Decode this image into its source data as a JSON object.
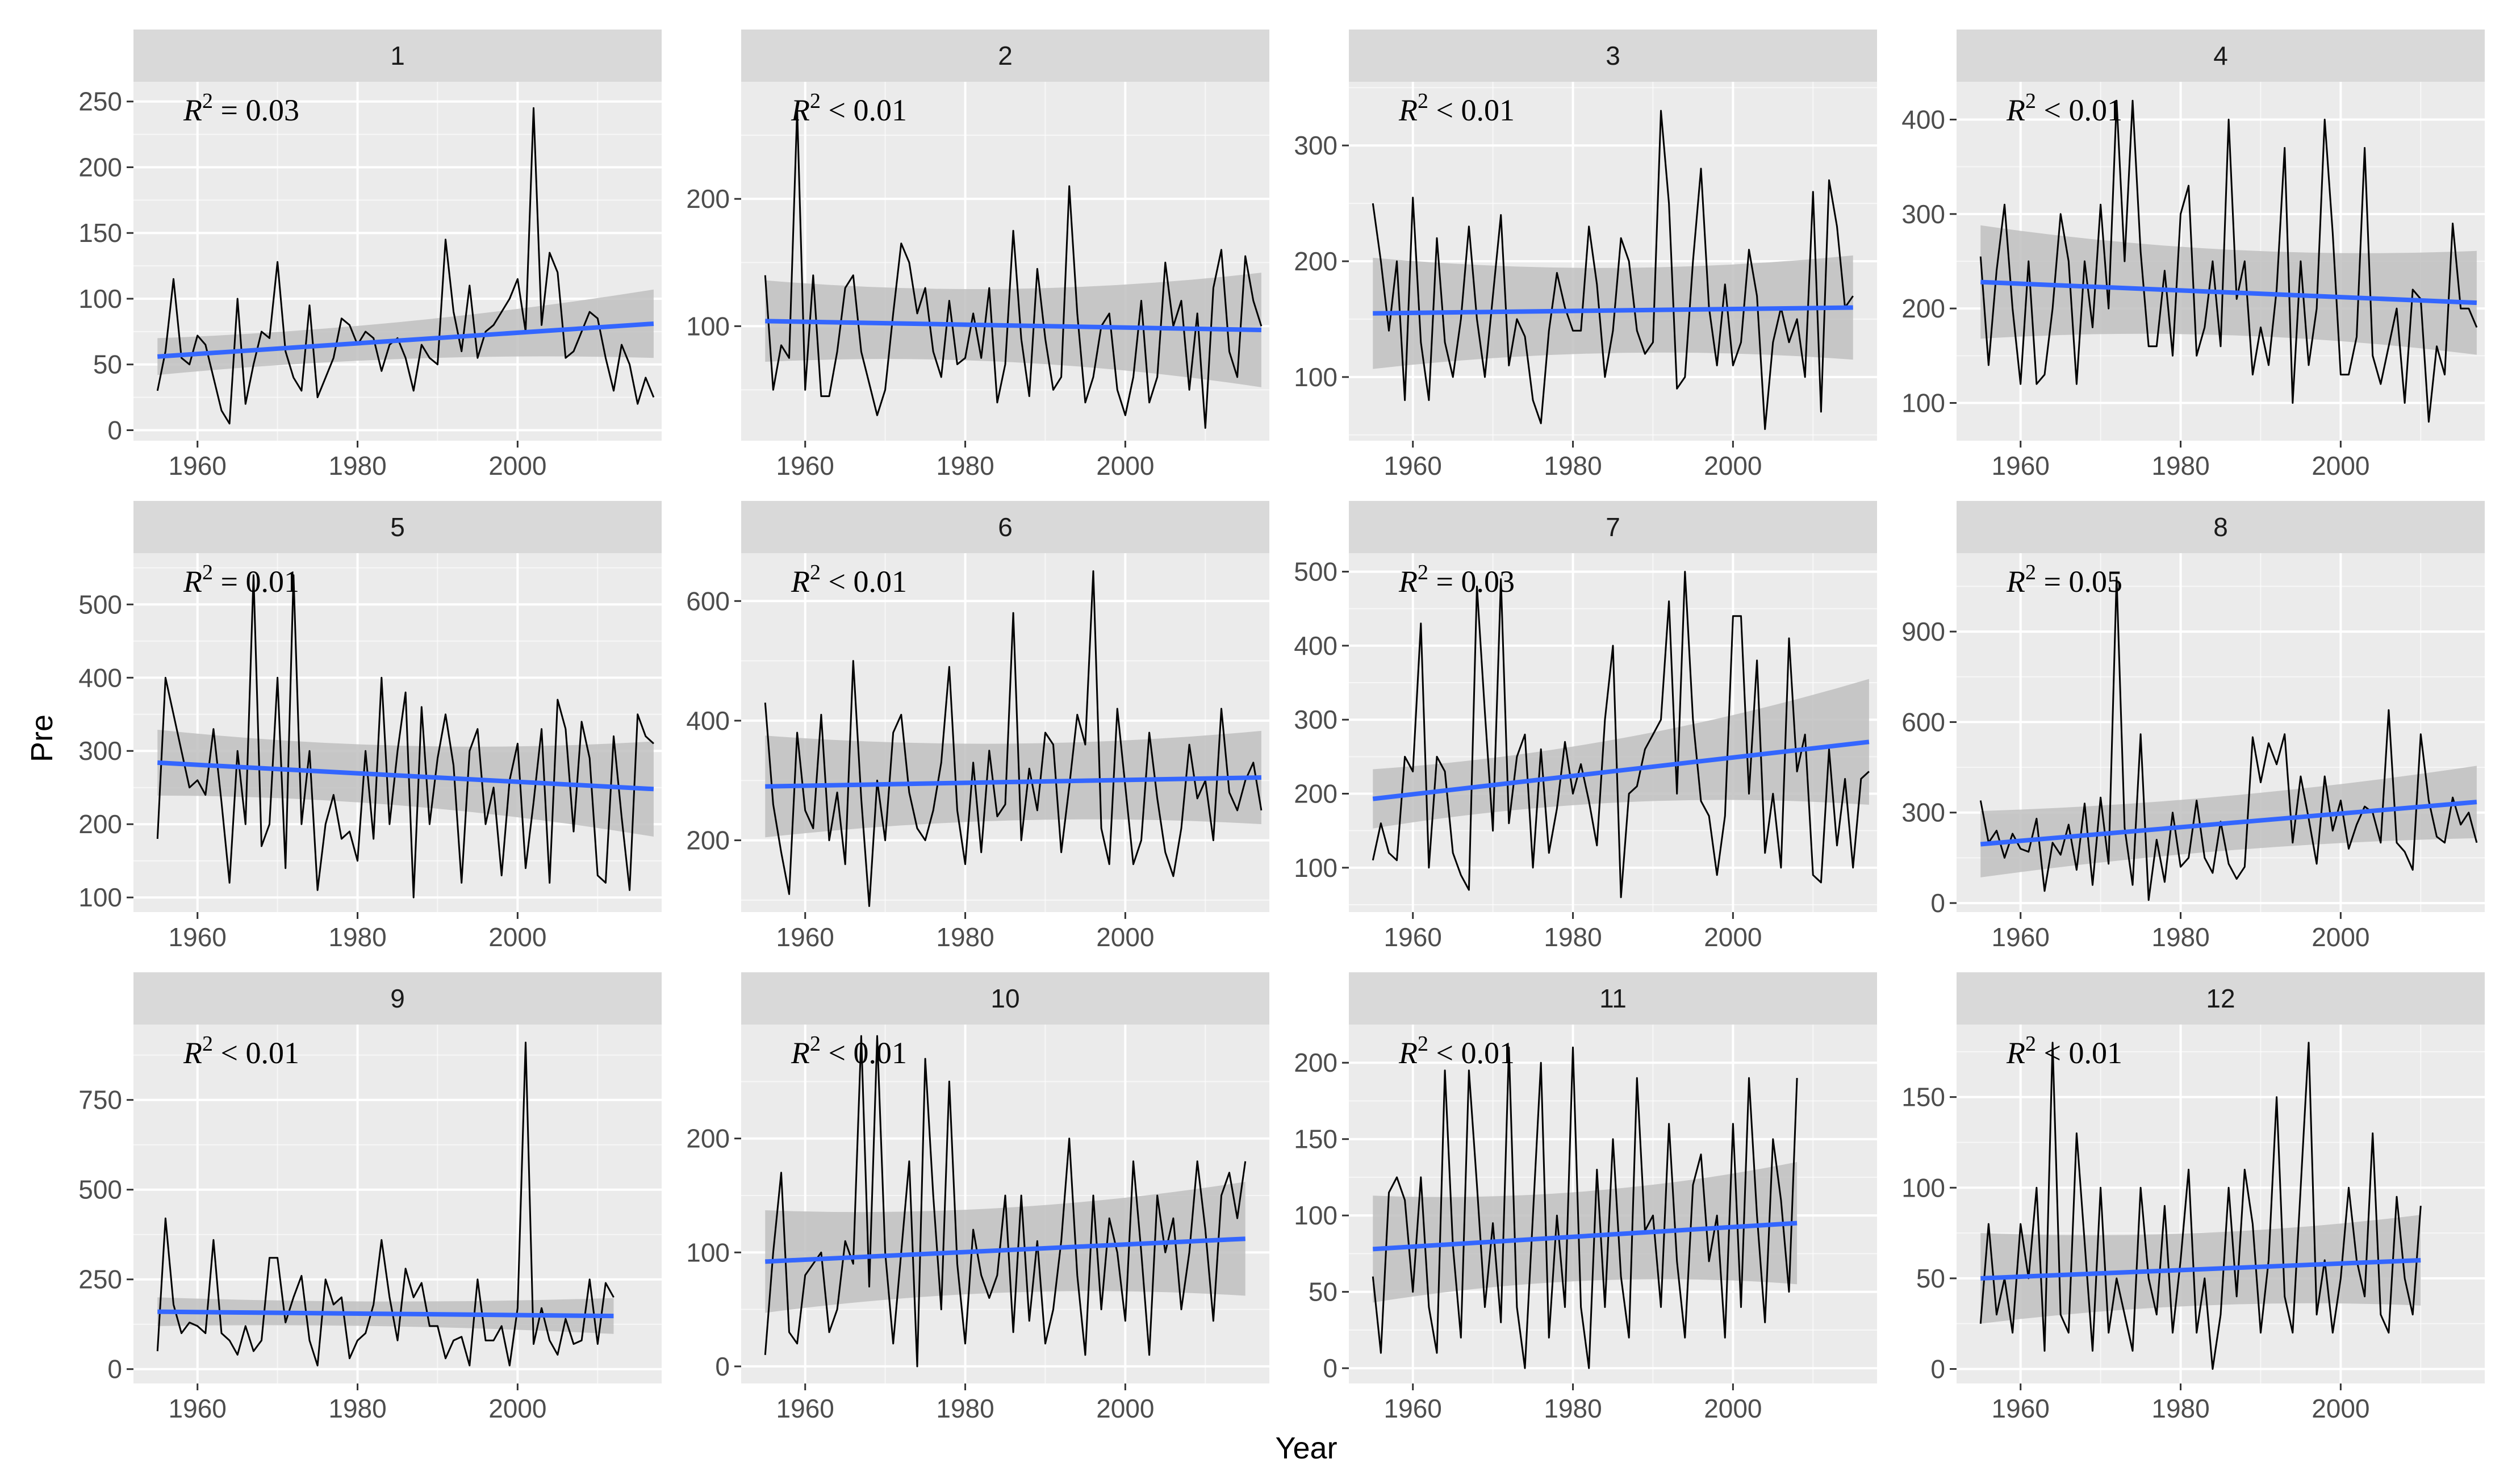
{
  "xlabel": "Year",
  "ylabel": "Pre",
  "colors": {
    "panel": "#ebebeb",
    "strip": "#d9d9d9",
    "trend": "#3366ff",
    "band": "#bfbfbf",
    "series": "#000000"
  },
  "chart_data": [
    {
      "type": "line",
      "panel": "1",
      "annotation": "0.03",
      "annotation_op": "=",
      "xlim": [
        1952,
        2018
      ],
      "ylim": [
        -8,
        265
      ],
      "x_ticks": [
        1960,
        1980,
        2000
      ],
      "y_ticks": [
        0,
        50,
        100,
        150,
        200,
        250
      ],
      "trend": {
        "start": 56,
        "end": 81,
        "band": [
          14,
          26
        ]
      },
      "series": [
        {
          "name": "Pre",
          "x_start": 1955,
          "values": [
            30,
            60,
            115,
            55,
            50,
            72,
            65,
            40,
            15,
            5,
            100,
            20,
            50,
            75,
            70,
            128,
            60,
            40,
            30,
            95,
            25,
            40,
            55,
            85,
            80,
            65,
            75,
            70,
            45,
            65,
            70,
            55,
            30,
            65,
            55,
            50,
            145,
            90,
            60,
            110,
            55,
            75,
            80,
            90,
            100,
            115,
            75,
            245,
            80,
            135,
            120,
            55,
            60,
            75,
            90,
            85,
            55,
            30,
            65,
            50,
            20,
            40,
            25
          ]
        }
      ]
    },
    {
      "type": "line",
      "panel": "2",
      "annotation": "0.01",
      "annotation_op": "<",
      "xlim": [
        1952,
        2018
      ],
      "ylim": [
        10,
        292
      ],
      "x_ticks": [
        1960,
        1980,
        2000
      ],
      "y_ticks": [
        100,
        200
      ],
      "trend": {
        "start": 104,
        "end": 97,
        "band": [
          32,
          45
        ]
      },
      "series": [
        {
          "name": "Pre",
          "x_start": 1955,
          "values": [
            140,
            50,
            85,
            75,
            270,
            50,
            140,
            45,
            45,
            80,
            130,
            140,
            80,
            55,
            30,
            50,
            110,
            165,
            150,
            110,
            130,
            80,
            60,
            120,
            70,
            75,
            110,
            75,
            130,
            40,
            70,
            175,
            90,
            45,
            145,
            90,
            50,
            60,
            210,
            110,
            40,
            60,
            100,
            110,
            50,
            30,
            60,
            120,
            40,
            60,
            150,
            100,
            120,
            50,
            110,
            20,
            130,
            160,
            80,
            60,
            155,
            120,
            100
          ]
        }
      ]
    },
    {
      "type": "line",
      "panel": "3",
      "annotation": "0.01",
      "annotation_op": "<",
      "xlim": [
        1952,
        2018
      ],
      "ylim": [
        45,
        355
      ],
      "x_ticks": [
        1960,
        1980,
        2000
      ],
      "y_ticks": [
        100,
        200,
        300
      ],
      "trend": {
        "start": 155,
        "end": 160,
        "band": [
          48,
          45
        ]
      },
      "series": [
        {
          "name": "Pre",
          "x_start": 1955,
          "values": [
            250,
            200,
            140,
            200,
            80,
            255,
            130,
            80,
            220,
            130,
            100,
            150,
            230,
            150,
            100,
            170,
            240,
            110,
            150,
            135,
            80,
            60,
            140,
            190,
            160,
            140,
            140,
            230,
            180,
            100,
            140,
            220,
            200,
            140,
            120,
            130,
            330,
            250,
            90,
            100,
            200,
            280,
            160,
            110,
            180,
            110,
            130,
            210,
            170,
            55,
            130,
            160,
            130,
            150,
            100,
            260,
            70,
            270,
            230,
            160,
            170
          ]
        }
      ]
    },
    {
      "type": "line",
      "panel": "4",
      "annotation": "0.01",
      "annotation_op": "<",
      "xlim": [
        1952,
        2018
      ],
      "ylim": [
        60,
        440
      ],
      "x_ticks": [
        1960,
        1980,
        2000
      ],
      "y_ticks": [
        100,
        200,
        300,
        400
      ],
      "trend": {
        "start": 228,
        "end": 206,
        "band": [
          60,
          55
        ]
      },
      "series": [
        {
          "name": "Pre",
          "x_start": 1955,
          "values": [
            255,
            140,
            240,
            310,
            200,
            120,
            250,
            120,
            130,
            200,
            300,
            250,
            120,
            250,
            180,
            310,
            200,
            420,
            250,
            420,
            260,
            160,
            160,
            240,
            150,
            300,
            330,
            150,
            180,
            250,
            160,
            400,
            210,
            250,
            130,
            180,
            140,
            220,
            370,
            100,
            250,
            140,
            200,
            400,
            280,
            130,
            130,
            170,
            370,
            150,
            120,
            160,
            200,
            100,
            220,
            210,
            80,
            160,
            130,
            290,
            200,
            200,
            180
          ]
        }
      ]
    },
    {
      "type": "line",
      "panel": "5",
      "annotation": "0.01",
      "annotation_op": "=",
      "xlim": [
        1952,
        2018
      ],
      "ylim": [
        80,
        570
      ],
      "x_ticks": [
        1960,
        1980,
        2000
      ],
      "y_ticks": [
        100,
        200,
        300,
        400,
        500
      ],
      "trend": {
        "start": 284,
        "end": 248,
        "band": [
          45,
          65
        ]
      },
      "series": [
        {
          "name": "Pre",
          "x_start": 1955,
          "values": [
            180,
            400,
            350,
            300,
            250,
            260,
            240,
            330,
            230,
            120,
            300,
            200,
            540,
            170,
            200,
            400,
            140,
            540,
            200,
            300,
            110,
            200,
            240,
            180,
            190,
            150,
            300,
            180,
            400,
            200,
            300,
            380,
            100,
            360,
            200,
            290,
            350,
            280,
            120,
            300,
            330,
            200,
            250,
            130,
            260,
            310,
            140,
            230,
            330,
            120,
            370,
            330,
            190,
            340,
            290,
            130,
            120,
            320,
            210,
            110,
            350,
            320,
            310
          ]
        }
      ]
    },
    {
      "type": "line",
      "panel": "6",
      "annotation": "0.01",
      "annotation_op": "<",
      "xlim": [
        1952,
        2018
      ],
      "ylim": [
        80,
        680
      ],
      "x_ticks": [
        1960,
        1980,
        2000
      ],
      "y_ticks": [
        200,
        400,
        600
      ],
      "trend": {
        "start": 290,
        "end": 305,
        "band": [
          85,
          78
        ]
      },
      "series": [
        {
          "name": "Pre",
          "x_start": 1955,
          "values": [
            430,
            260,
            180,
            110,
            380,
            250,
            220,
            410,
            200,
            280,
            160,
            500,
            270,
            90,
            300,
            200,
            380,
            410,
            280,
            220,
            200,
            250,
            330,
            490,
            250,
            160,
            330,
            180,
            350,
            240,
            260,
            580,
            200,
            320,
            250,
            380,
            360,
            180,
            290,
            410,
            360,
            650,
            220,
            160,
            420,
            290,
            160,
            200,
            380,
            270,
            180,
            140,
            220,
            360,
            270,
            300,
            200,
            420,
            280,
            250,
            300,
            330,
            250
          ]
        }
      ]
    },
    {
      "type": "line",
      "panel": "7",
      "annotation": "0.03",
      "annotation_op": "=",
      "xlim": [
        1952,
        2018
      ],
      "ylim": [
        40,
        525
      ],
      "x_ticks": [
        1960,
        1980,
        2000
      ],
      "y_ticks": [
        100,
        200,
        300,
        400,
        500
      ],
      "trend": {
        "start": 193,
        "end": 270,
        "band": [
          40,
          85
        ]
      },
      "series": [
        {
          "name": "Pre",
          "x_start": 1955,
          "values": [
            110,
            160,
            120,
            110,
            250,
            230,
            430,
            100,
            250,
            230,
            120,
            90,
            70,
            480,
            310,
            150,
            490,
            160,
            250,
            280,
            100,
            260,
            120,
            180,
            270,
            200,
            240,
            190,
            130,
            300,
            400,
            60,
            200,
            210,
            260,
            280,
            300,
            460,
            200,
            500,
            300,
            190,
            170,
            90,
            170,
            440,
            440,
            200,
            380,
            120,
            200,
            100,
            410,
            230,
            280,
            90,
            80,
            260,
            130,
            220,
            100,
            220,
            230
          ]
        }
      ]
    },
    {
      "type": "line",
      "panel": "8",
      "annotation": "0.05",
      "annotation_op": "=",
      "xlim": [
        1952,
        2018
      ],
      "ylim": [
        -30,
        1160
      ],
      "x_ticks": [
        1960,
        1980,
        2000
      ],
      "y_ticks": [
        0,
        300,
        600,
        900
      ],
      "trend": {
        "start": 195,
        "end": 335,
        "band": [
          110,
          120
        ]
      },
      "series": [
        {
          "name": "Pre",
          "x_start": 1955,
          "values": [
            340,
            200,
            240,
            150,
            230,
            180,
            170,
            280,
            40,
            200,
            160,
            260,
            110,
            330,
            60,
            350,
            130,
            1080,
            250,
            60,
            560,
            10,
            210,
            70,
            300,
            120,
            150,
            340,
            150,
            100,
            270,
            130,
            80,
            120,
            550,
            400,
            530,
            460,
            560,
            200,
            420,
            280,
            130,
            420,
            240,
            340,
            180,
            260,
            320,
            300,
            200,
            640,
            200,
            170,
            110,
            560,
            340,
            220,
            200,
            350,
            260,
            300,
            200
          ]
        }
      ]
    },
    {
      "type": "line",
      "panel": "9",
      "annotation": "0.01",
      "annotation_op": "<",
      "xlim": [
        1952,
        2018
      ],
      "ylim": [
        -40,
        960
      ],
      "x_ticks": [
        1960,
        1980,
        2000
      ],
      "y_ticks": [
        0,
        250,
        500,
        750
      ],
      "trend": {
        "start": 160,
        "end": 148,
        "band": [
          40,
          50
        ]
      },
      "series": [
        {
          "name": "Pre",
          "x_start": 1955,
          "values": [
            50,
            420,
            180,
            100,
            130,
            120,
            100,
            360,
            100,
            80,
            40,
            120,
            50,
            80,
            310,
            310,
            130,
            200,
            260,
            80,
            10,
            250,
            180,
            200,
            30,
            80,
            100,
            180,
            360,
            200,
            80,
            280,
            200,
            240,
            120,
            120,
            30,
            80,
            90,
            10,
            250,
            80,
            80,
            120,
            10,
            170,
            910,
            70,
            170,
            80,
            40,
            140,
            70,
            80,
            250,
            70,
            240,
            200
          ]
        }
      ]
    },
    {
      "type": "line",
      "panel": "10",
      "annotation": "0.01",
      "annotation_op": "<",
      "xlim": [
        1952,
        2018
      ],
      "ylim": [
        -15,
        300
      ],
      "x_ticks": [
        1960,
        1980,
        2000
      ],
      "y_ticks": [
        0,
        100,
        200
      ],
      "trend": {
        "start": 92,
        "end": 112,
        "band": [
          45,
          50
        ]
      },
      "series": [
        {
          "name": "Pre",
          "x_start": 1955,
          "values": [
            10,
            100,
            170,
            30,
            20,
            80,
            90,
            100,
            30,
            50,
            110,
            90,
            290,
            70,
            290,
            100,
            20,
            100,
            180,
            0,
            270,
            150,
            50,
            250,
            90,
            20,
            120,
            80,
            60,
            80,
            150,
            30,
            150,
            40,
            110,
            20,
            50,
            110,
            200,
            80,
            10,
            150,
            50,
            130,
            100,
            40,
            180,
            100,
            10,
            150,
            100,
            130,
            50,
            100,
            180,
            120,
            40,
            150,
            170,
            130,
            180
          ]
        }
      ]
    },
    {
      "type": "line",
      "panel": "11",
      "annotation": "0.01",
      "annotation_op": "<",
      "xlim": [
        1952,
        2018
      ],
      "ylim": [
        -10,
        225
      ],
      "x_ticks": [
        1960,
        1980,
        2000
      ],
      "y_ticks": [
        0,
        50,
        100,
        150,
        200
      ],
      "trend": {
        "start": 78,
        "end": 95,
        "band": [
          35,
          40
        ]
      },
      "series": [
        {
          "name": "Pre",
          "x_start": 1955,
          "values": [
            60,
            10,
            115,
            125,
            110,
            50,
            125,
            40,
            10,
            195,
            80,
            20,
            195,
            120,
            40,
            95,
            30,
            210,
            40,
            0,
            100,
            200,
            20,
            100,
            40,
            210,
            40,
            0,
            130,
            40,
            150,
            60,
            20,
            190,
            90,
            100,
            40,
            160,
            70,
            20,
            120,
            140,
            70,
            100,
            20,
            160,
            40,
            190,
            100,
            30,
            150,
            110,
            50,
            190
          ]
        }
      ]
    },
    {
      "type": "line",
      "panel": "12",
      "annotation": "0.01",
      "annotation_op": "<",
      "xlim": [
        1952,
        2018
      ],
      "ylim": [
        -8,
        190
      ],
      "x_ticks": [
        1960,
        1980,
        2000
      ],
      "y_ticks": [
        0,
        50,
        100,
        150
      ],
      "trend": {
        "start": 50,
        "end": 60,
        "band": [
          25,
          25
        ]
      },
      "series": [
        {
          "name": "Pre",
          "x_start": 1955,
          "values": [
            25,
            80,
            30,
            50,
            20,
            80,
            50,
            100,
            10,
            180,
            30,
            20,
            130,
            70,
            10,
            100,
            20,
            50,
            30,
            10,
            100,
            50,
            30,
            90,
            20,
            60,
            110,
            20,
            50,
            0,
            30,
            100,
            40,
            110,
            80,
            20,
            60,
            150,
            40,
            20,
            100,
            180,
            30,
            60,
            20,
            50,
            100,
            60,
            40,
            130,
            30,
            20,
            95,
            50,
            30,
            90
          ]
        }
      ]
    }
  ]
}
